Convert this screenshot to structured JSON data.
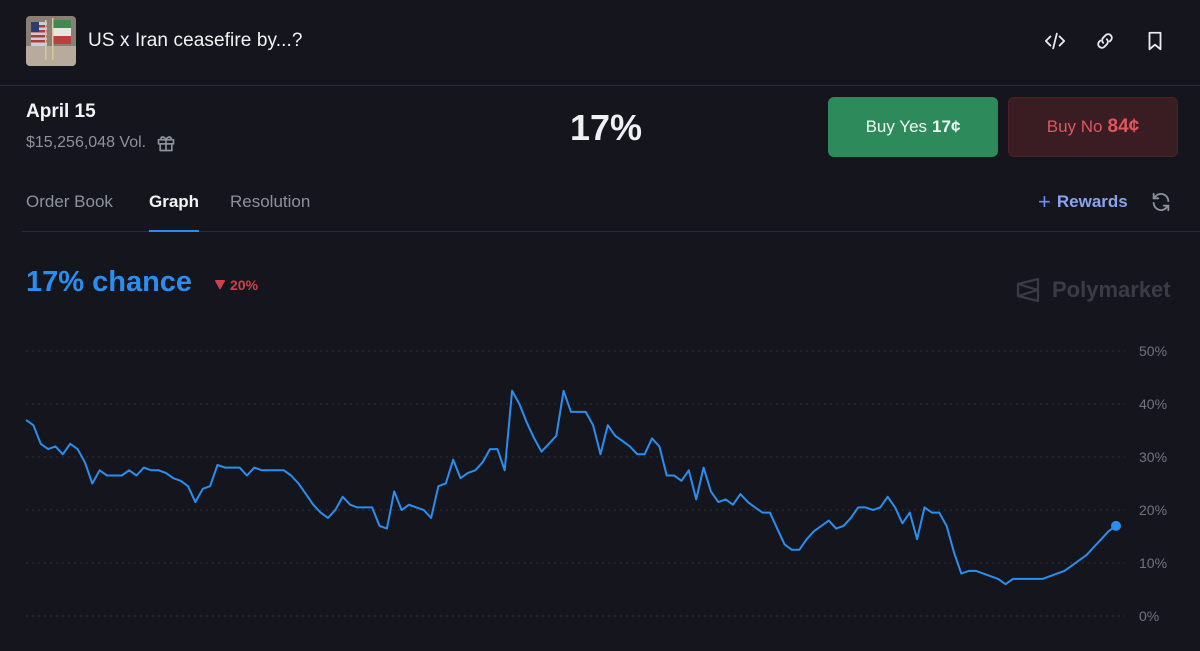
{
  "header": {
    "title": "US x Iran ceasefire by...?",
    "icons": [
      "embed-code-icon",
      "link-icon",
      "bookmark-icon"
    ]
  },
  "summary": {
    "date": "April 15",
    "volume": "$15,256,048 Vol.",
    "percent": "17%",
    "buy_yes": {
      "label": "Buy Yes",
      "price": "17¢"
    },
    "buy_no": {
      "label": "Buy No",
      "price": "84¢"
    }
  },
  "tabs": [
    {
      "label": "Order Book",
      "active": false
    },
    {
      "label": "Graph",
      "active": true
    },
    {
      "label": "Resolution",
      "active": false
    }
  ],
  "rewards_label": "Rewards",
  "chance": {
    "label": "17% chance",
    "change": "20%"
  },
  "brand": "Polymarket",
  "colors": {
    "background": "#15161d",
    "accent": "#2a8ef0",
    "yes": "#2d8a5a",
    "no": "#e05660",
    "negative": "#d1404a"
  },
  "chart_data": {
    "type": "line",
    "y_ticks": [
      "50%",
      "40%",
      "30%",
      "20%",
      "10%",
      "0%"
    ],
    "ylim": [
      0,
      50
    ],
    "grid": true,
    "series": [
      {
        "values": [
          37,
          36,
          32.5,
          31.5,
          32,
          30.5,
          32.5,
          31.5,
          29,
          25,
          27.5,
          26.5,
          26.5,
          26.5,
          27.5,
          26.5,
          28,
          27.5,
          27.5,
          27,
          26,
          25.5,
          24.5,
          21.5,
          24,
          24.5,
          28.5,
          28,
          28,
          28,
          26.5,
          28,
          27.5,
          27.5,
          27.5,
          27.5,
          26.5,
          25,
          23,
          21,
          19.5,
          18.5,
          20,
          22.5,
          21,
          20.5,
          20.5,
          20.5,
          17,
          16.5,
          23.5,
          20,
          21,
          20.5,
          20,
          18.5,
          24.5,
          25,
          29.5,
          26,
          27,
          27.5,
          29,
          31.5,
          31.5,
          27.5,
          42.5,
          40,
          36.5,
          33.5,
          31,
          32.5,
          34,
          42.5,
          38.5,
          38.5,
          38.5,
          36,
          30.5,
          36,
          34,
          33,
          32,
          30.5,
          30.5,
          33.5,
          32,
          26.5,
          26.5,
          25.5,
          27.5,
          22,
          28,
          23.5,
          21.5,
          22,
          21,
          23,
          21.5,
          20.5,
          19.5,
          19.5,
          16.5,
          13.5,
          12.5,
          12.5,
          14.5,
          16,
          17,
          18,
          16.5,
          17,
          18.5,
          20.5,
          20.5,
          20,
          20.5,
          22.5,
          20.5,
          17.5,
          19.5,
          14.5,
          20.5,
          19.5,
          19.5,
          17,
          12,
          8,
          8.5,
          8.5,
          8,
          7.5,
          7,
          6,
          7,
          7,
          7,
          7,
          7,
          7.5,
          8,
          8.5,
          9.5,
          10.5,
          11.5,
          13,
          14.5,
          16,
          17
        ]
      }
    ]
  }
}
